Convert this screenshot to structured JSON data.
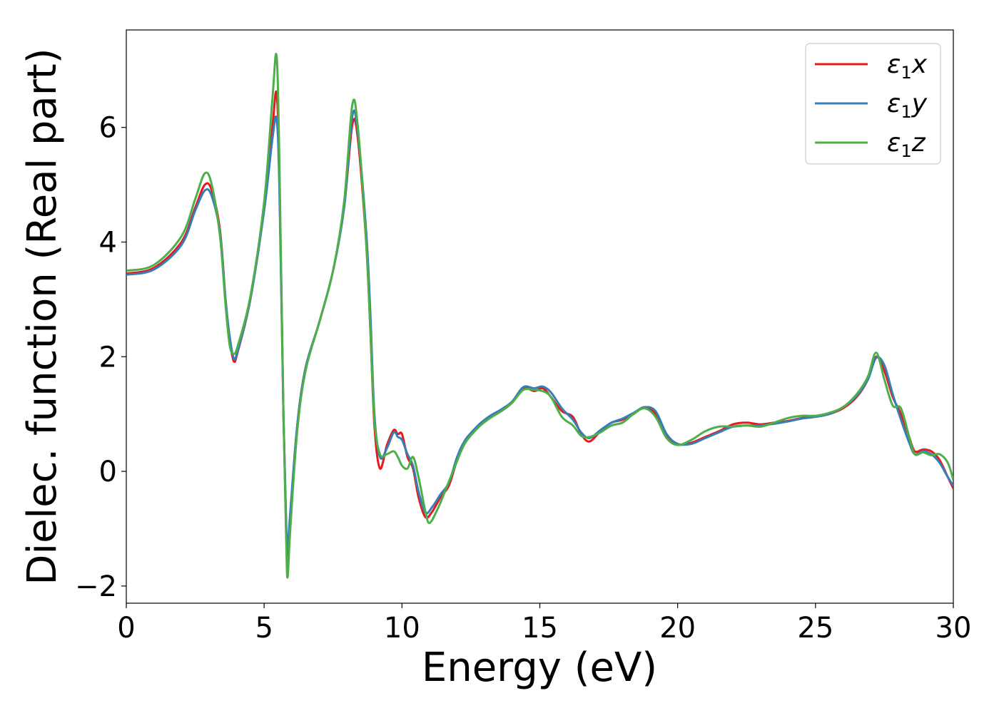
{
  "chart_data": {
    "type": "line",
    "title": "",
    "xlabel": "Energy (eV)",
    "ylabel": "Dielec. function (Real part)",
    "xlim": [
      0,
      30
    ],
    "ylim": [
      -2.3,
      7.7
    ],
    "xticks": [
      0,
      5,
      10,
      15,
      20,
      25,
      30
    ],
    "yticks": [
      -2,
      0,
      2,
      4,
      6
    ],
    "xtick_labels": [
      "0",
      "5",
      "10",
      "15",
      "20",
      "25",
      "30"
    ],
    "ytick_labels": [
      "−2",
      "0",
      "2",
      "4",
      "6"
    ],
    "grid": false,
    "legend_position": "top-right",
    "colors": {
      "x": "#e41a1c",
      "y": "#377eb8",
      "z": "#4daf4a"
    },
    "series": [
      {
        "name": "ε₁x",
        "legend_main": "ε",
        "legend_sub": "1",
        "legend_var": "x",
        "color": "#e41a1c",
        "points": [
          [
            0,
            3.45
          ],
          [
            1,
            3.55
          ],
          [
            2,
            4.0
          ],
          [
            2.5,
            4.6
          ],
          [
            2.85,
            5.0
          ],
          [
            3.1,
            4.9
          ],
          [
            3.4,
            4.2
          ],
          [
            3.6,
            3.0
          ],
          [
            3.75,
            2.3
          ],
          [
            3.9,
            1.92
          ],
          [
            4.05,
            2.1
          ],
          [
            4.5,
            3.0
          ],
          [
            5.0,
            4.6
          ],
          [
            5.3,
            6.0
          ],
          [
            5.45,
            6.6
          ],
          [
            5.55,
            5.2
          ],
          [
            5.7,
            1.0
          ],
          [
            5.8,
            -1.0
          ],
          [
            5.85,
            -1.55
          ],
          [
            5.95,
            -0.8
          ],
          [
            6.2,
            0.8
          ],
          [
            6.5,
            1.8
          ],
          [
            7.0,
            2.6
          ],
          [
            7.5,
            3.5
          ],
          [
            7.9,
            4.6
          ],
          [
            8.2,
            6.05
          ],
          [
            8.4,
            5.8
          ],
          [
            8.7,
            4.0
          ],
          [
            8.85,
            2.5
          ],
          [
            9.0,
            0.8
          ],
          [
            9.2,
            0.05
          ],
          [
            9.45,
            0.45
          ],
          [
            9.7,
            0.72
          ],
          [
            9.85,
            0.65
          ],
          [
            10.0,
            0.65
          ],
          [
            10.2,
            0.25
          ],
          [
            10.4,
            0.05
          ],
          [
            10.6,
            -0.45
          ],
          [
            10.85,
            -0.8
          ],
          [
            11.1,
            -0.7
          ],
          [
            11.4,
            -0.45
          ],
          [
            11.7,
            -0.25
          ],
          [
            12.0,
            0.2
          ],
          [
            12.3,
            0.55
          ],
          [
            12.8,
            0.8
          ],
          [
            13.2,
            0.95
          ],
          [
            13.6,
            1.05
          ],
          [
            14.0,
            1.2
          ],
          [
            14.4,
            1.45
          ],
          [
            14.8,
            1.4
          ],
          [
            15.1,
            1.45
          ],
          [
            15.4,
            1.3
          ],
          [
            15.8,
            1.05
          ],
          [
            16.2,
            0.95
          ],
          [
            16.5,
            0.65
          ],
          [
            16.8,
            0.52
          ],
          [
            17.2,
            0.7
          ],
          [
            17.6,
            0.85
          ],
          [
            18.0,
            0.9
          ],
          [
            18.4,
            1.0
          ],
          [
            18.8,
            1.12
          ],
          [
            19.2,
            1.0
          ],
          [
            19.6,
            0.6
          ],
          [
            20.0,
            0.47
          ],
          [
            20.5,
            0.5
          ],
          [
            21.0,
            0.6
          ],
          [
            21.5,
            0.7
          ],
          [
            22.0,
            0.82
          ],
          [
            22.5,
            0.85
          ],
          [
            23.0,
            0.82
          ],
          [
            23.5,
            0.85
          ],
          [
            24.0,
            0.88
          ],
          [
            24.5,
            0.93
          ],
          [
            25.0,
            0.96
          ],
          [
            25.5,
            1.0
          ],
          [
            26.0,
            1.1
          ],
          [
            26.5,
            1.3
          ],
          [
            26.9,
            1.6
          ],
          [
            27.2,
            2.0
          ],
          [
            27.5,
            1.75
          ],
          [
            27.8,
            1.3
          ],
          [
            28.1,
            1.0
          ],
          [
            28.4,
            0.6
          ],
          [
            28.6,
            0.35
          ],
          [
            28.9,
            0.38
          ],
          [
            29.2,
            0.35
          ],
          [
            29.5,
            0.2
          ],
          [
            29.8,
            -0.1
          ],
          [
            30.0,
            -0.3
          ]
        ]
      },
      {
        "name": "ε₁y",
        "legend_main": "ε",
        "legend_sub": "1",
        "legend_var": "y",
        "color": "#377eb8",
        "points": [
          [
            0,
            3.43
          ],
          [
            1,
            3.52
          ],
          [
            2,
            3.95
          ],
          [
            2.5,
            4.55
          ],
          [
            2.85,
            4.9
          ],
          [
            3.1,
            4.8
          ],
          [
            3.4,
            4.15
          ],
          [
            3.6,
            3.0
          ],
          [
            3.75,
            2.35
          ],
          [
            3.9,
            1.97
          ],
          [
            4.05,
            2.12
          ],
          [
            4.5,
            3.0
          ],
          [
            5.0,
            4.55
          ],
          [
            5.3,
            5.8
          ],
          [
            5.45,
            6.15
          ],
          [
            5.55,
            5.0
          ],
          [
            5.7,
            1.0
          ],
          [
            5.8,
            -0.9
          ],
          [
            5.85,
            -1.35
          ],
          [
            5.95,
            -0.7
          ],
          [
            6.2,
            0.8
          ],
          [
            6.5,
            1.8
          ],
          [
            7.0,
            2.6
          ],
          [
            7.5,
            3.5
          ],
          [
            7.9,
            4.6
          ],
          [
            8.2,
            6.2
          ],
          [
            8.4,
            5.9
          ],
          [
            8.7,
            4.2
          ],
          [
            8.85,
            2.8
          ],
          [
            9.0,
            1.0
          ],
          [
            9.2,
            0.25
          ],
          [
            9.45,
            0.4
          ],
          [
            9.7,
            0.68
          ],
          [
            9.85,
            0.6
          ],
          [
            10.0,
            0.55
          ],
          [
            10.2,
            0.3
          ],
          [
            10.4,
            0.1
          ],
          [
            10.6,
            -0.35
          ],
          [
            10.85,
            -0.72
          ],
          [
            11.1,
            -0.62
          ],
          [
            11.4,
            -0.4
          ],
          [
            11.7,
            -0.2
          ],
          [
            12.0,
            0.25
          ],
          [
            12.3,
            0.55
          ],
          [
            12.8,
            0.82
          ],
          [
            13.2,
            0.97
          ],
          [
            13.6,
            1.08
          ],
          [
            14.0,
            1.22
          ],
          [
            14.4,
            1.47
          ],
          [
            14.8,
            1.45
          ],
          [
            15.1,
            1.48
          ],
          [
            15.4,
            1.38
          ],
          [
            15.8,
            1.1
          ],
          [
            16.2,
            0.9
          ],
          [
            16.5,
            0.68
          ],
          [
            16.8,
            0.58
          ],
          [
            17.2,
            0.72
          ],
          [
            17.6,
            0.85
          ],
          [
            18.0,
            0.92
          ],
          [
            18.4,
            1.02
          ],
          [
            18.8,
            1.12
          ],
          [
            19.2,
            1.05
          ],
          [
            19.6,
            0.65
          ],
          [
            20.0,
            0.48
          ],
          [
            20.5,
            0.48
          ],
          [
            21.0,
            0.58
          ],
          [
            21.5,
            0.68
          ],
          [
            22.0,
            0.78
          ],
          [
            22.5,
            0.8
          ],
          [
            23.0,
            0.8
          ],
          [
            23.5,
            0.83
          ],
          [
            24.0,
            0.87
          ],
          [
            24.5,
            0.92
          ],
          [
            25.0,
            0.95
          ],
          [
            25.5,
            1.0
          ],
          [
            26.0,
            1.12
          ],
          [
            26.5,
            1.32
          ],
          [
            26.9,
            1.6
          ],
          [
            27.2,
            1.98
          ],
          [
            27.5,
            1.85
          ],
          [
            27.8,
            1.35
          ],
          [
            28.1,
            0.9
          ],
          [
            28.4,
            0.5
          ],
          [
            28.6,
            0.3
          ],
          [
            28.9,
            0.35
          ],
          [
            29.2,
            0.3
          ],
          [
            29.5,
            0.15
          ],
          [
            29.8,
            -0.1
          ],
          [
            30.0,
            -0.25
          ]
        ]
      },
      {
        "name": "ε₁z",
        "legend_main": "ε",
        "legend_sub": "1",
        "legend_var": "z",
        "color": "#4daf4a",
        "points": [
          [
            0,
            3.5
          ],
          [
            1,
            3.6
          ],
          [
            2,
            4.1
          ],
          [
            2.5,
            4.75
          ],
          [
            2.85,
            5.2
          ],
          [
            3.1,
            5.0
          ],
          [
            3.4,
            4.1
          ],
          [
            3.6,
            2.9
          ],
          [
            3.75,
            2.2
          ],
          [
            3.9,
            2.05
          ],
          [
            4.05,
            2.2
          ],
          [
            4.5,
            3.05
          ],
          [
            5.0,
            4.7
          ],
          [
            5.3,
            6.5
          ],
          [
            5.45,
            7.25
          ],
          [
            5.55,
            5.5
          ],
          [
            5.7,
            1.0
          ],
          [
            5.8,
            -1.2
          ],
          [
            5.85,
            -1.85
          ],
          [
            5.95,
            -1.0
          ],
          [
            6.2,
            0.7
          ],
          [
            6.5,
            1.75
          ],
          [
            7.0,
            2.6
          ],
          [
            7.5,
            3.5
          ],
          [
            7.9,
            4.7
          ],
          [
            8.2,
            6.4
          ],
          [
            8.4,
            6.0
          ],
          [
            8.7,
            4.0
          ],
          [
            8.85,
            2.5
          ],
          [
            9.0,
            0.9
          ],
          [
            9.2,
            0.3
          ],
          [
            9.45,
            0.3
          ],
          [
            9.7,
            0.35
          ],
          [
            9.85,
            0.25
          ],
          [
            10.0,
            0.1
          ],
          [
            10.2,
            0.05
          ],
          [
            10.4,
            0.25
          ],
          [
            10.6,
            -0.1
          ],
          [
            10.85,
            -0.7
          ],
          [
            11.0,
            -0.9
          ],
          [
            11.3,
            -0.65
          ],
          [
            11.6,
            -0.3
          ],
          [
            12.0,
            0.18
          ],
          [
            12.3,
            0.5
          ],
          [
            12.8,
            0.78
          ],
          [
            13.2,
            0.93
          ],
          [
            13.6,
            1.05
          ],
          [
            14.0,
            1.2
          ],
          [
            14.4,
            1.42
          ],
          [
            14.8,
            1.42
          ],
          [
            15.1,
            1.4
          ],
          [
            15.4,
            1.3
          ],
          [
            15.8,
            0.95
          ],
          [
            16.2,
            0.8
          ],
          [
            16.5,
            0.62
          ],
          [
            16.8,
            0.6
          ],
          [
            17.2,
            0.68
          ],
          [
            17.6,
            0.8
          ],
          [
            18.0,
            0.85
          ],
          [
            18.4,
            1.0
          ],
          [
            18.8,
            1.1
          ],
          [
            19.2,
            0.95
          ],
          [
            19.6,
            0.58
          ],
          [
            20.0,
            0.46
          ],
          [
            20.5,
            0.55
          ],
          [
            21.0,
            0.7
          ],
          [
            21.5,
            0.78
          ],
          [
            22.0,
            0.78
          ],
          [
            22.5,
            0.8
          ],
          [
            23.0,
            0.78
          ],
          [
            23.5,
            0.85
          ],
          [
            24.0,
            0.93
          ],
          [
            24.5,
            0.97
          ],
          [
            25.0,
            0.97
          ],
          [
            25.5,
            1.02
          ],
          [
            26.0,
            1.12
          ],
          [
            26.5,
            1.35
          ],
          [
            26.9,
            1.65
          ],
          [
            27.2,
            2.07
          ],
          [
            27.5,
            1.6
          ],
          [
            27.8,
            1.15
          ],
          [
            28.1,
            1.1
          ],
          [
            28.4,
            0.6
          ],
          [
            28.6,
            0.3
          ],
          [
            28.9,
            0.33
          ],
          [
            29.2,
            0.28
          ],
          [
            29.5,
            0.3
          ],
          [
            29.8,
            0.15
          ],
          [
            30.0,
            -0.15
          ]
        ]
      }
    ]
  }
}
